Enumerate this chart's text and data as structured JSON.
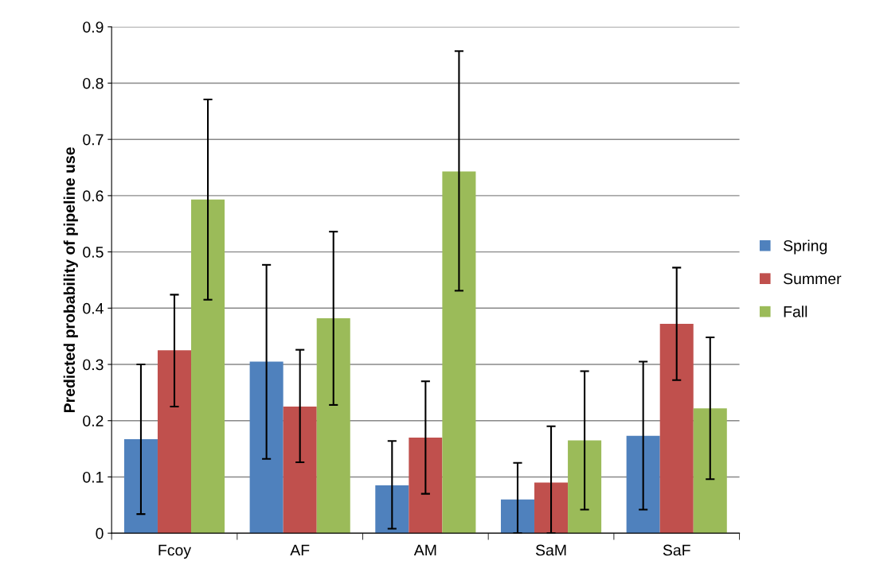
{
  "chart_data": {
    "type": "bar",
    "ylabel": "Predicted probability of pipeline use",
    "categories": [
      "Fcoy",
      "AF",
      "AM",
      "SaM",
      "SaF"
    ],
    "series": [
      {
        "name": "Spring",
        "color": "#4f81bd",
        "values": [
          0.167,
          0.305,
          0.085,
          0.06,
          0.173
        ],
        "errors": [
          [
            0.034,
            0.3
          ],
          [
            0.132,
            0.477
          ],
          [
            0.008,
            0.164
          ],
          [
            0.0,
            0.125
          ],
          [
            0.042,
            0.305
          ]
        ]
      },
      {
        "name": "Summer",
        "color": "#c0504d",
        "values": [
          0.325,
          0.225,
          0.17,
          0.09,
          0.372
        ],
        "errors": [
          [
            0.225,
            0.424
          ],
          [
            0.126,
            0.326
          ],
          [
            0.07,
            0.27
          ],
          [
            0.0,
            0.19
          ],
          [
            0.272,
            0.472
          ]
        ]
      },
      {
        "name": "Fall",
        "color": "#9bbb59",
        "values": [
          0.593,
          0.382,
          0.643,
          0.165,
          0.222
        ],
        "errors": [
          [
            0.415,
            0.771
          ],
          [
            0.228,
            0.536
          ],
          [
            0.431,
            0.857
          ],
          [
            0.042,
            0.288
          ],
          [
            0.096,
            0.348
          ]
        ]
      }
    ],
    "ylim": [
      0,
      0.9
    ],
    "yticks": [
      0,
      0.1,
      0.2,
      0.3,
      0.4,
      0.5,
      0.6,
      0.7,
      0.8,
      0.9
    ],
    "grid": "y",
    "legend": "right"
  }
}
